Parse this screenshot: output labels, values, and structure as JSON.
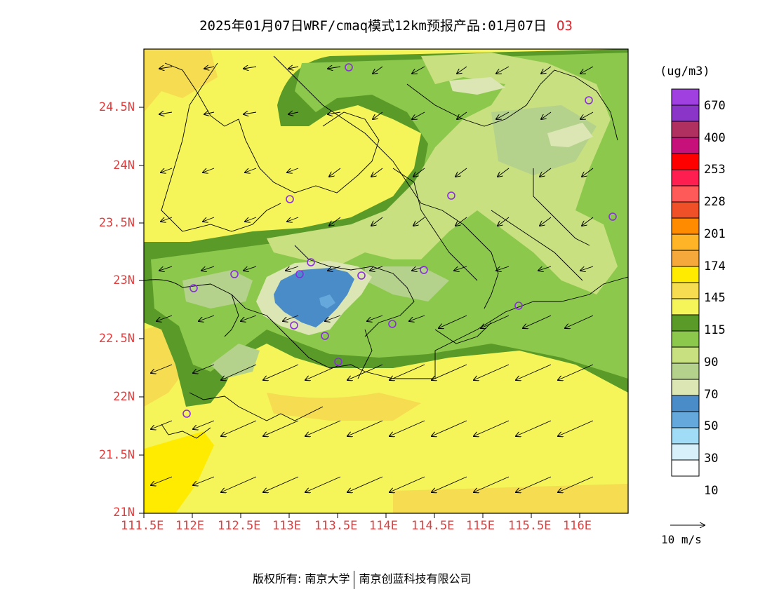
{
  "title": {
    "main": "2025年01月07日WRF/cmaq模式12km预报产品:01月07日",
    "pollutant": "O3"
  },
  "axes": {
    "lat_labels": [
      "24.5N",
      "24N",
      "23.5N",
      "23N",
      "22.5N",
      "22N",
      "21.5N",
      "21N"
    ],
    "lon_labels": [
      "111.5E",
      "112E",
      "112.5E",
      "113E",
      "113.5E",
      "114E",
      "114.5E",
      "115E",
      "115.5E",
      "116E"
    ]
  },
  "colorbar": {
    "unit": "(ug/m3)",
    "labels": [
      "670",
      "400",
      "253",
      "228",
      "201",
      "174",
      "145",
      "115",
      "90",
      "70",
      "50",
      "30",
      "10"
    ],
    "colors": [
      "#a040e0",
      "#8b35c8",
      "#b03060",
      "#c8107a",
      "#ff0000",
      "#ff1e50",
      "#ff5a5a",
      "#f05028",
      "#ff8c00",
      "#ffb428",
      "#f5a83c",
      "#ffeb00",
      "#f5dc50",
      "#f5f55a",
      "#5a9a28",
      "#8cc84b",
      "#c8e080",
      "#b4d28c",
      "#dce6b4",
      "#4a8cc8",
      "#64a8dc",
      "#a0dcf5",
      "#d8f0fa",
      "#ffffff"
    ]
  },
  "wind_reference": "10 m/s",
  "footer": {
    "left": "版权所有: 南京大学",
    "right": "南京创蓝科技有限公司"
  }
}
